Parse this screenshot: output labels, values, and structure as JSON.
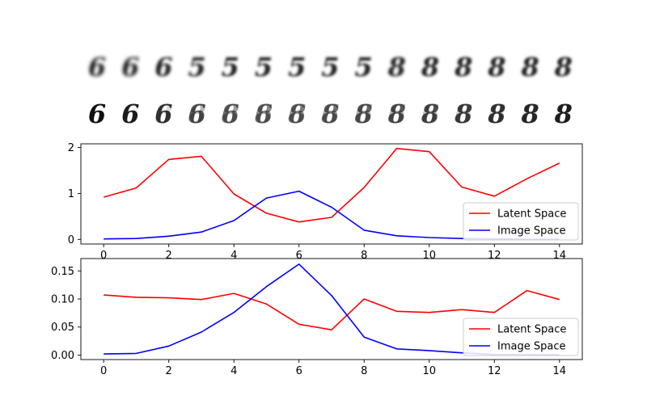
{
  "interpolation_strips": [
    {
      "name": "latent-space-interpolation",
      "frames": [
        "6",
        "6",
        "6",
        "5",
        "5",
        "5",
        "5",
        "5",
        "5",
        "8",
        "8",
        "8",
        "8",
        "8",
        "8"
      ],
      "blur": [
        2.2,
        2.0,
        1.8,
        1.8,
        1.6,
        1.6,
        1.5,
        1.6,
        1.7,
        1.8,
        1.7,
        1.6,
        1.5,
        1.5,
        1.5
      ]
    },
    {
      "name": "image-space-interpolation",
      "frames": [
        "6",
        "6",
        "6",
        "6",
        "8",
        "8",
        "8",
        "8",
        "8",
        "8",
        "8",
        "8",
        "8",
        "8",
        "8"
      ],
      "ghost": [
        0.0,
        0.05,
        0.15,
        0.3,
        0.4,
        0.5,
        0.55,
        0.6,
        0.65,
        0.7,
        0.75,
        0.8,
        0.85,
        0.9,
        0.95
      ]
    }
  ],
  "chart_data": [
    {
      "type": "line",
      "x": [
        0,
        1,
        2,
        3,
        4,
        5,
        6,
        7,
        8,
        9,
        10,
        11,
        12,
        13,
        14
      ],
      "series": [
        {
          "name": "Latent Space",
          "color": "#ff0000",
          "values": [
            0.92,
            1.12,
            1.74,
            1.81,
            0.99,
            0.57,
            0.38,
            0.48,
            1.13,
            1.98,
            1.91,
            1.14,
            0.94,
            1.32,
            1.66
          ]
        },
        {
          "name": "Image Space",
          "color": "#0000ff",
          "values": [
            0.01,
            0.02,
            0.07,
            0.16,
            0.41,
            0.9,
            1.05,
            0.7,
            0.2,
            0.08,
            0.04,
            0.02,
            0.01,
            0.005,
            0.002
          ]
        }
      ],
      "xticks": [
        0,
        2,
        4,
        6,
        8,
        10,
        12,
        14
      ],
      "xtick_labels": [
        "0",
        "2",
        "4",
        "6",
        "8",
        "10",
        "12",
        "14"
      ],
      "yticks": [
        0,
        1,
        2
      ],
      "ytick_labels": [
        "0",
        "1",
        "2"
      ],
      "xlim": [
        -0.7,
        14.7
      ],
      "ylim": [
        -0.1,
        2.08
      ],
      "legend_position": "lower-right",
      "grid": false
    },
    {
      "type": "line",
      "x": [
        0,
        1,
        2,
        3,
        4,
        5,
        6,
        7,
        8,
        9,
        10,
        11,
        12,
        13,
        14
      ],
      "series": [
        {
          "name": "Latent Space",
          "color": "#ff0000",
          "values": [
            0.107,
            0.103,
            0.102,
            0.099,
            0.11,
            0.091,
            0.055,
            0.045,
            0.1,
            0.078,
            0.076,
            0.081,
            0.076,
            0.115,
            0.099
          ]
        },
        {
          "name": "Image Space",
          "color": "#0000ff",
          "values": [
            0.002,
            0.003,
            0.016,
            0.041,
            0.076,
            0.122,
            0.162,
            0.106,
            0.032,
            0.011,
            0.008,
            0.004,
            0.001,
            0.0005,
            0.0003
          ]
        }
      ],
      "xticks": [
        0,
        2,
        4,
        6,
        8,
        10,
        12,
        14
      ],
      "xtick_labels": [
        "0",
        "2",
        "4",
        "6",
        "8",
        "10",
        "12",
        "14"
      ],
      "yticks": [
        0.0,
        0.05,
        0.1,
        0.15
      ],
      "ytick_labels": [
        "0.00",
        "0.05",
        "0.10",
        "0.15"
      ],
      "xlim": [
        -0.7,
        14.7
      ],
      "ylim": [
        -0.008,
        0.172
      ],
      "legend_position": "lower-right",
      "grid": false
    }
  ]
}
